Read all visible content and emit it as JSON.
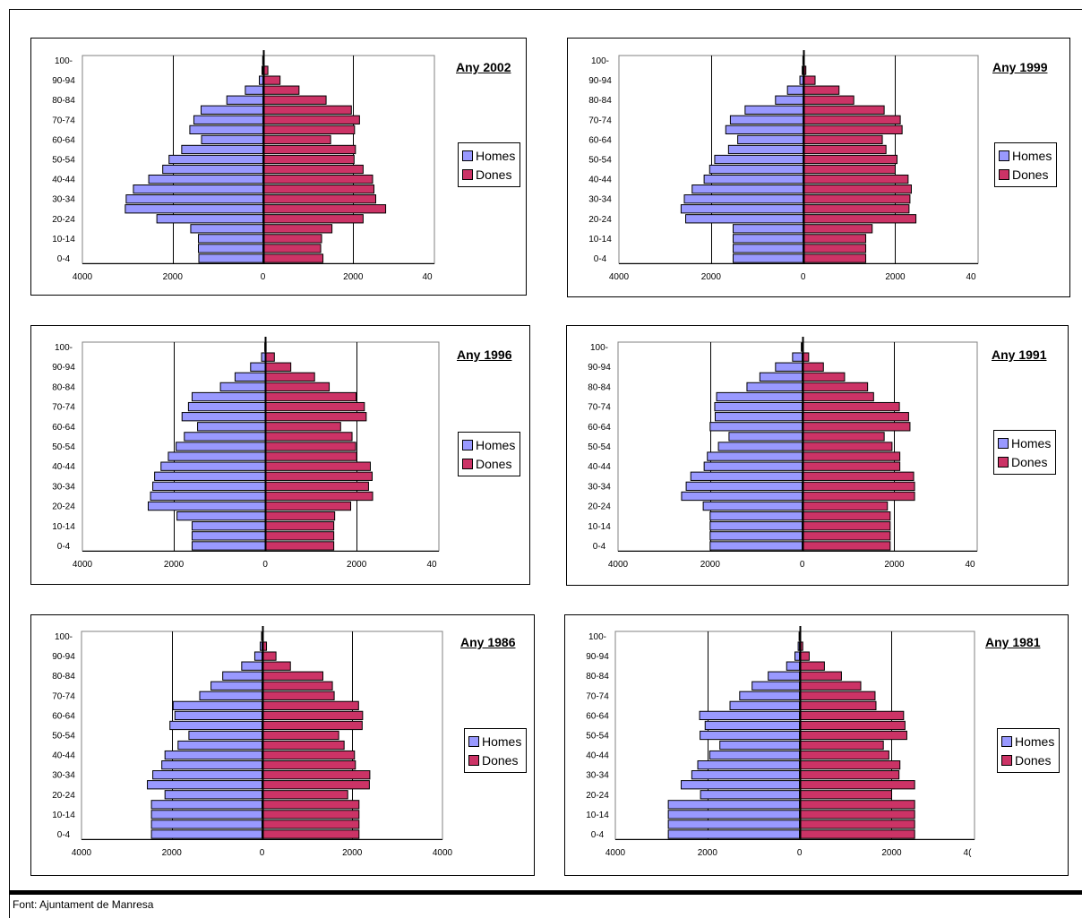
{
  "source": "Font: Ajuntament de Manresa",
  "colors": {
    "homes": "#9999ff",
    "dones": "#cc3366"
  },
  "chart_data": [
    {
      "type": "bar",
      "title": "Any 2002",
      "categories": [
        "0-4",
        "5-9",
        "10-14",
        "15-19",
        "20-24",
        "25-29",
        "30-34",
        "35-39",
        "40-44",
        "45-49",
        "50-54",
        "55-59",
        "60-64",
        "65-69",
        "70-74",
        "75-79",
        "80-84",
        "85-89",
        "90-94",
        "95-99",
        "100-"
      ],
      "tick_labels": [
        "0-4",
        "10-14",
        "20-24",
        "30-34",
        "40-44",
        "50-54",
        "60-64",
        "70-74",
        "80-84",
        "90-94",
        "100-"
      ],
      "xticks": [
        "4000",
        "2000",
        "0",
        "2000",
        "40"
      ],
      "xlim": [
        -4000,
        3800
      ],
      "series": [
        {
          "name": "Homes",
          "values": [
            -1420,
            -1430,
            -1430,
            -1600,
            -2350,
            -3050,
            -3030,
            -2870,
            -2530,
            -2220,
            -2080,
            -1800,
            -1360,
            -1620,
            -1530,
            -1370,
            -800,
            -390,
            -80,
            -20,
            -5
          ]
        },
        {
          "name": "Dones",
          "values": [
            1330,
            1280,
            1300,
            1530,
            2220,
            2720,
            2500,
            2460,
            2430,
            2220,
            2020,
            2050,
            1500,
            2030,
            2140,
            1960,
            1400,
            800,
            380,
            110,
            20
          ]
        }
      ],
      "legend": "right"
    },
    {
      "type": "bar",
      "title": "Any 1999",
      "categories": [
        "0-4",
        "5-9",
        "10-14",
        "15-19",
        "20-24",
        "25-29",
        "30-34",
        "35-39",
        "40-44",
        "45-49",
        "50-54",
        "55-59",
        "60-64",
        "65-69",
        "70-74",
        "75-79",
        "80-84",
        "85-89",
        "90-94",
        "95-99",
        "100-"
      ],
      "tick_labels": [
        "0-4",
        "10-14",
        "20-24",
        "30-34",
        "40-44",
        "50-54",
        "60-64",
        "70-74",
        "80-84",
        "90-94",
        "100-"
      ],
      "xticks": [
        "4000",
        "2000",
        "0",
        "2000",
        "40"
      ],
      "xlim": [
        -4000,
        3800
      ],
      "series": [
        {
          "name": "Homes",
          "values": [
            -1520,
            -1520,
            -1520,
            -1520,
            -2550,
            -2650,
            -2580,
            -2410,
            -2150,
            -2030,
            -1920,
            -1620,
            -1420,
            -1680,
            -1580,
            -1260,
            -600,
            -340,
            -70,
            -20,
            -5
          ]
        },
        {
          "name": "Dones",
          "values": [
            1360,
            1360,
            1360,
            1500,
            2450,
            2300,
            2320,
            2350,
            2280,
            2000,
            2040,
            1800,
            1720,
            2150,
            2110,
            1760,
            1100,
            780,
            260,
            60,
            10
          ]
        }
      ],
      "legend": "right"
    },
    {
      "type": "bar",
      "title": "Any 1996",
      "categories": [
        "0-4",
        "5-9",
        "10-14",
        "15-19",
        "20-24",
        "25-29",
        "30-34",
        "35-39",
        "40-44",
        "45-49",
        "50-54",
        "55-59",
        "60-64",
        "65-69",
        "70-74",
        "75-79",
        "80-84",
        "85-89",
        "90-94",
        "95-99",
        "100-"
      ],
      "tick_labels": [
        "0-4",
        "10-14",
        "20-24",
        "30-34",
        "40-44",
        "50-54",
        "60-64",
        "70-74",
        "80-84",
        "90-94",
        "100-"
      ],
      "xticks": [
        "4000",
        "2000",
        "0",
        "2000",
        "40"
      ],
      "xlim": [
        -4000,
        3800
      ],
      "series": [
        {
          "name": "Homes",
          "values": [
            -1600,
            -1600,
            -1600,
            -1930,
            -2560,
            -2510,
            -2460,
            -2420,
            -2280,
            -2120,
            -1950,
            -1770,
            -1480,
            -1820,
            -1680,
            -1600,
            -980,
            -660,
            -320,
            -80,
            -10
          ]
        },
        {
          "name": "Dones",
          "values": [
            1500,
            1500,
            1500,
            1520,
            1870,
            2350,
            2260,
            2340,
            2300,
            2000,
            1980,
            1900,
            1650,
            2210,
            2170,
            1990,
            1400,
            1080,
            560,
            200,
            20
          ]
        }
      ],
      "legend": "right"
    },
    {
      "type": "bar",
      "title": "Any 1991",
      "categories": [
        "0-4",
        "5-9",
        "10-14",
        "15-19",
        "20-24",
        "25-29",
        "30-34",
        "35-39",
        "40-44",
        "45-49",
        "50-54",
        "55-59",
        "60-64",
        "65-69",
        "70-74",
        "75-79",
        "80-84",
        "85-89",
        "90-94",
        "95-99",
        "100-"
      ],
      "tick_labels": [
        "0-4",
        "10-14",
        "20-24",
        "30-34",
        "40-44",
        "50-54",
        "60-64",
        "70-74",
        "80-84",
        "90-94",
        "100-"
      ],
      "xticks": [
        "4000",
        "2000",
        "0",
        "2000",
        "40"
      ],
      "xlim": [
        -4000,
        3800
      ],
      "series": [
        {
          "name": "Homes",
          "values": [
            -2000,
            -2000,
            -2000,
            -2000,
            -2150,
            -2620,
            -2520,
            -2420,
            -2130,
            -2060,
            -1820,
            -1590,
            -2000,
            -1890,
            -1900,
            -1860,
            -1200,
            -920,
            -580,
            -210,
            -20
          ]
        },
        {
          "name": "Dones",
          "values": [
            1910,
            1910,
            1910,
            1910,
            1850,
            2440,
            2440,
            2420,
            2120,
            2120,
            1950,
            1780,
            2340,
            2310,
            2110,
            1550,
            1420,
            920,
            460,
            140,
            20
          ]
        }
      ],
      "legend": "right"
    },
    {
      "type": "bar",
      "title": "Any 1986",
      "categories": [
        "0-4",
        "5-9",
        "10-14",
        "15-19",
        "20-24",
        "25-29",
        "30-34",
        "35-39",
        "40-44",
        "45-49",
        "50-54",
        "55-59",
        "60-64",
        "65-69",
        "70-74",
        "75-79",
        "80-84",
        "85-89",
        "90-94",
        "95-99",
        "100-"
      ],
      "tick_labels": [
        "0-4",
        "10-14",
        "20-24",
        "30-34",
        "40-44",
        "50-54",
        "60-64",
        "70-74",
        "80-84",
        "90-94",
        "100-"
      ],
      "xticks": [
        "4000",
        "2000",
        "0",
        "2000",
        "4000"
      ],
      "xlim": [
        -4000,
        4000
      ],
      "series": [
        {
          "name": "Homes",
          "values": [
            -2450,
            -2450,
            -2450,
            -2450,
            -2150,
            -2540,
            -2420,
            -2220,
            -2150,
            -1860,
            -1620,
            -2040,
            -1930,
            -1970,
            -1380,
            -1130,
            -870,
            -450,
            -160,
            -40,
            -10
          ]
        },
        {
          "name": "Dones",
          "values": [
            2150,
            2150,
            2150,
            2150,
            1900,
            2380,
            2390,
            2070,
            2050,
            1820,
            1700,
            2220,
            2230,
            2140,
            1600,
            1560,
            1350,
            630,
            310,
            100,
            20
          ]
        }
      ],
      "legend": "right"
    },
    {
      "type": "bar",
      "title": "Any 1981",
      "categories": [
        "0-4",
        "5-9",
        "10-14",
        "15-19",
        "20-24",
        "25-29",
        "30-34",
        "35-39",
        "40-44",
        "45-49",
        "50-54",
        "55-59",
        "60-64",
        "65-69",
        "70-74",
        "75-79",
        "80-84",
        "85-89",
        "90-94",
        "95-99",
        "100-"
      ],
      "tick_labels": [
        "0-4",
        "10-14",
        "20-24",
        "30-34",
        "40-44",
        "50-54",
        "60-64",
        "70-74",
        "80-84",
        "90-94",
        "100-"
      ],
      "xticks": [
        "4000",
        "2000",
        "0",
        "2000",
        "4("
      ],
      "xlim": [
        -4000,
        3800
      ],
      "series": [
        {
          "name": "Homes",
          "values": [
            -2850,
            -2850,
            -2850,
            -2850,
            -2150,
            -2570,
            -2340,
            -2210,
            -1950,
            -1730,
            -2160,
            -2050,
            -2170,
            -1510,
            -1300,
            -1030,
            -680,
            -280,
            -100,
            -30,
            -10
          ]
        },
        {
          "name": "Dones",
          "values": [
            2500,
            2500,
            2500,
            2500,
            2000,
            2500,
            2160,
            2180,
            1940,
            1820,
            2330,
            2290,
            2260,
            1660,
            1640,
            1330,
            910,
            540,
            210,
            70,
            20
          ]
        }
      ],
      "legend": "right"
    }
  ]
}
